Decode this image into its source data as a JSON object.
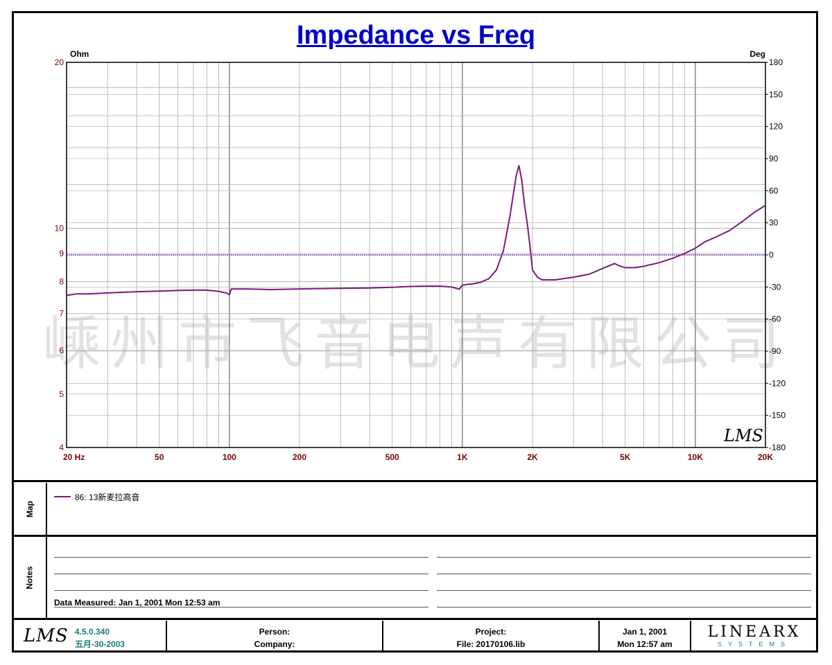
{
  "title": "Impedance vs Freq",
  "chart_data": {
    "type": "line",
    "title": "Impedance vs Freq",
    "xscale": "log",
    "xlim": [
      20,
      20000
    ],
    "x_ticks": [
      20,
      50,
      100,
      200,
      500,
      1000,
      2000,
      5000,
      10000,
      20000
    ],
    "x_tick_labels": [
      "20  Hz",
      "50",
      "100",
      "200",
      "500",
      "1K",
      "2K",
      "5K",
      "10K",
      "20K"
    ],
    "yleft_label": "Ohm",
    "yleft_scale": "log",
    "yleft_lim": [
      4,
      20
    ],
    "yleft_ticks": [
      4,
      5,
      6,
      7,
      8,
      9,
      10,
      20
    ],
    "yleft_tick_labels": [
      "4",
      "5",
      "6",
      "7",
      "8",
      "9",
      "10",
      "20"
    ],
    "yright_label": "Deg",
    "yright_lim": [
      -180,
      180
    ],
    "yright_ticks": [
      -180,
      -150,
      -120,
      -90,
      -60,
      -30,
      0,
      30,
      60,
      90,
      120,
      150,
      180
    ],
    "yright_tick_labels": [
      "-180",
      "-150",
      "-120",
      "-90",
      "-60",
      "-30",
      "0",
      "30",
      "60",
      "90",
      "120",
      "150",
      "180"
    ],
    "grid": true,
    "series": [
      {
        "name": "86: 13新麦拉高音",
        "color": "#7a1a7a",
        "x": [
          20,
          22,
          25,
          30,
          40,
          50,
          60,
          70,
          80,
          90,
          97,
          100,
          102,
          120,
          150,
          200,
          300,
          400,
          500,
          600,
          700,
          800,
          900,
          970,
          1000,
          1050,
          1100,
          1200,
          1300,
          1400,
          1500,
          1600,
          1700,
          1750,
          1800,
          1850,
          1900,
          1950,
          2000,
          2100,
          2200,
          2500,
          3000,
          3500,
          4000,
          4500,
          4700,
          5000,
          5500,
          6000,
          7000,
          8000,
          9000,
          10000,
          11000,
          12000,
          14000,
          16000,
          18000,
          20000
        ],
        "values": [
          7.55,
          7.6,
          7.6,
          7.63,
          7.67,
          7.69,
          7.71,
          7.72,
          7.72,
          7.68,
          7.63,
          7.58,
          7.76,
          7.76,
          7.74,
          7.76,
          7.78,
          7.79,
          7.81,
          7.84,
          7.85,
          7.85,
          7.82,
          7.75,
          7.88,
          7.91,
          7.92,
          7.98,
          8.1,
          8.4,
          9.1,
          10.5,
          12.4,
          13.0,
          12.2,
          11.0,
          10.2,
          9.3,
          8.4,
          8.15,
          8.06,
          8.06,
          8.15,
          8.25,
          8.45,
          8.63,
          8.55,
          8.48,
          8.48,
          8.53,
          8.66,
          8.82,
          9.0,
          9.2,
          9.45,
          9.6,
          9.9,
          10.3,
          10.7,
          11.0
        ]
      },
      {
        "name": "phase",
        "color": "#7a3a9a",
        "x": [
          20,
          20000
        ],
        "values": [
          0,
          0
        ]
      }
    ]
  },
  "watermark": "嵊州市飞音电声有限公司",
  "plot_logo": "LMS",
  "map_label": "Map",
  "legend_entry": "86: 13新麦拉高音",
  "notes_label": "Notes",
  "data_measured": "Data Measured: Jan  1, 2001  Mon 12:53 am",
  "footer": {
    "logo": "LMS",
    "version": "4.5.0.340",
    "version_date": "五月-30-2003",
    "person": "Person:",
    "company": "Company:",
    "project": "Project:",
    "file": "File: 20170106.lib",
    "date": "Jan  1, 2001",
    "time": "Mon 12:57 am",
    "brand": "LINEARX",
    "brand_sub": "SYSTEMS"
  }
}
